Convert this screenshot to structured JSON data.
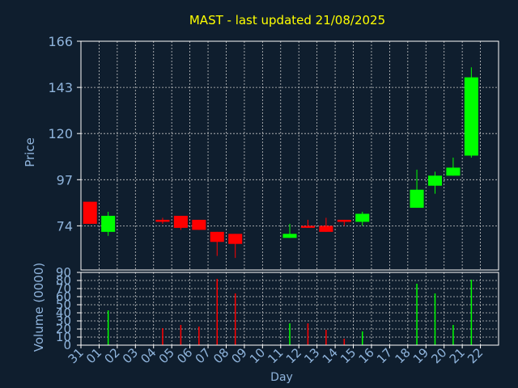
{
  "colors": {
    "background": "#0f1e2e",
    "frame": "#ffffff",
    "grid": "#c8c8c8",
    "title": "#ffff00",
    "axis_text": "#8fb4dc",
    "up": "#00ff00",
    "down": "#ff0000"
  },
  "chart_data": [
    {
      "type": "candlestick",
      "title": "MAST - last updated 21/08/2025",
      "ylabel": "Price",
      "ylim": [
        52,
        166
      ],
      "yticks": [
        74,
        97,
        120,
        143,
        166
      ],
      "grid": true,
      "categories": [
        "31",
        "01",
        "02",
        "03",
        "04",
        "05",
        "06",
        "07",
        "08",
        "09",
        "10",
        "11",
        "12",
        "13",
        "14",
        "15",
        "16",
        "17",
        "18",
        "19",
        "20",
        "21",
        "22"
      ],
      "candles": [
        {
          "x": "31",
          "open": 86,
          "close": 75,
          "high": 86,
          "low": 75
        },
        {
          "x": "01",
          "open": 71,
          "close": 79,
          "high": 81,
          "low": 69
        },
        {
          "x": "04",
          "open": 77,
          "close": 76,
          "high": 78,
          "low": 75
        },
        {
          "x": "05",
          "open": 79,
          "close": 73,
          "high": 79,
          "low": 72
        },
        {
          "x": "06",
          "open": 77,
          "close": 72,
          "high": 77,
          "low": 72
        },
        {
          "x": "07",
          "open": 71,
          "close": 66,
          "high": 71,
          "low": 59
        },
        {
          "x": "08",
          "open": 70,
          "close": 65,
          "high": 70,
          "low": 58
        },
        {
          "x": "11",
          "open": 68,
          "close": 70,
          "high": 75,
          "low": 68
        },
        {
          "x": "12",
          "open": 74,
          "close": 73,
          "high": 77,
          "low": 73
        },
        {
          "x": "13",
          "open": 74,
          "close": 71,
          "high": 78,
          "low": 71
        },
        {
          "x": "14",
          "open": 77,
          "close": 76,
          "high": 77,
          "low": 74
        },
        {
          "x": "15",
          "open": 76,
          "close": 80,
          "high": 81,
          "low": 74
        },
        {
          "x": "18",
          "open": 83,
          "close": 92,
          "high": 102,
          "low": 83
        },
        {
          "x": "19",
          "open": 94,
          "close": 99,
          "high": 101,
          "low": 90
        },
        {
          "x": "20",
          "open": 99,
          "close": 103,
          "high": 108,
          "low": 99
        },
        {
          "x": "21",
          "open": 109,
          "close": 148,
          "high": 153,
          "low": 108
        }
      ]
    },
    {
      "type": "bar",
      "ylabel": "Volume (0000)",
      "xlabel": "Day",
      "ylim": [
        0,
        90
      ],
      "yticks": [
        0,
        10,
        20,
        30,
        40,
        50,
        60,
        70,
        80,
        90
      ],
      "grid": true,
      "categories": [
        "31",
        "01",
        "02",
        "03",
        "04",
        "05",
        "06",
        "07",
        "08",
        "09",
        "10",
        "11",
        "12",
        "13",
        "14",
        "15",
        "16",
        "17",
        "18",
        "19",
        "20",
        "21",
        "22"
      ],
      "bars": [
        {
          "x": "01",
          "value": 43,
          "direction": "up"
        },
        {
          "x": "04",
          "value": 21,
          "direction": "down"
        },
        {
          "x": "05",
          "value": 25,
          "direction": "down"
        },
        {
          "x": "06",
          "value": 23,
          "direction": "down"
        },
        {
          "x": "07",
          "value": 82,
          "direction": "down"
        },
        {
          "x": "08",
          "value": 64,
          "direction": "down"
        },
        {
          "x": "11",
          "value": 27,
          "direction": "up"
        },
        {
          "x": "12",
          "value": 27,
          "direction": "down"
        },
        {
          "x": "13",
          "value": 19,
          "direction": "down"
        },
        {
          "x": "14",
          "value": 8,
          "direction": "down"
        },
        {
          "x": "15",
          "value": 17,
          "direction": "up"
        },
        {
          "x": "18",
          "value": 76,
          "direction": "up"
        },
        {
          "x": "19",
          "value": 64,
          "direction": "up"
        },
        {
          "x": "20",
          "value": 25,
          "direction": "up"
        },
        {
          "x": "21",
          "value": 81,
          "direction": "up"
        }
      ]
    }
  ]
}
